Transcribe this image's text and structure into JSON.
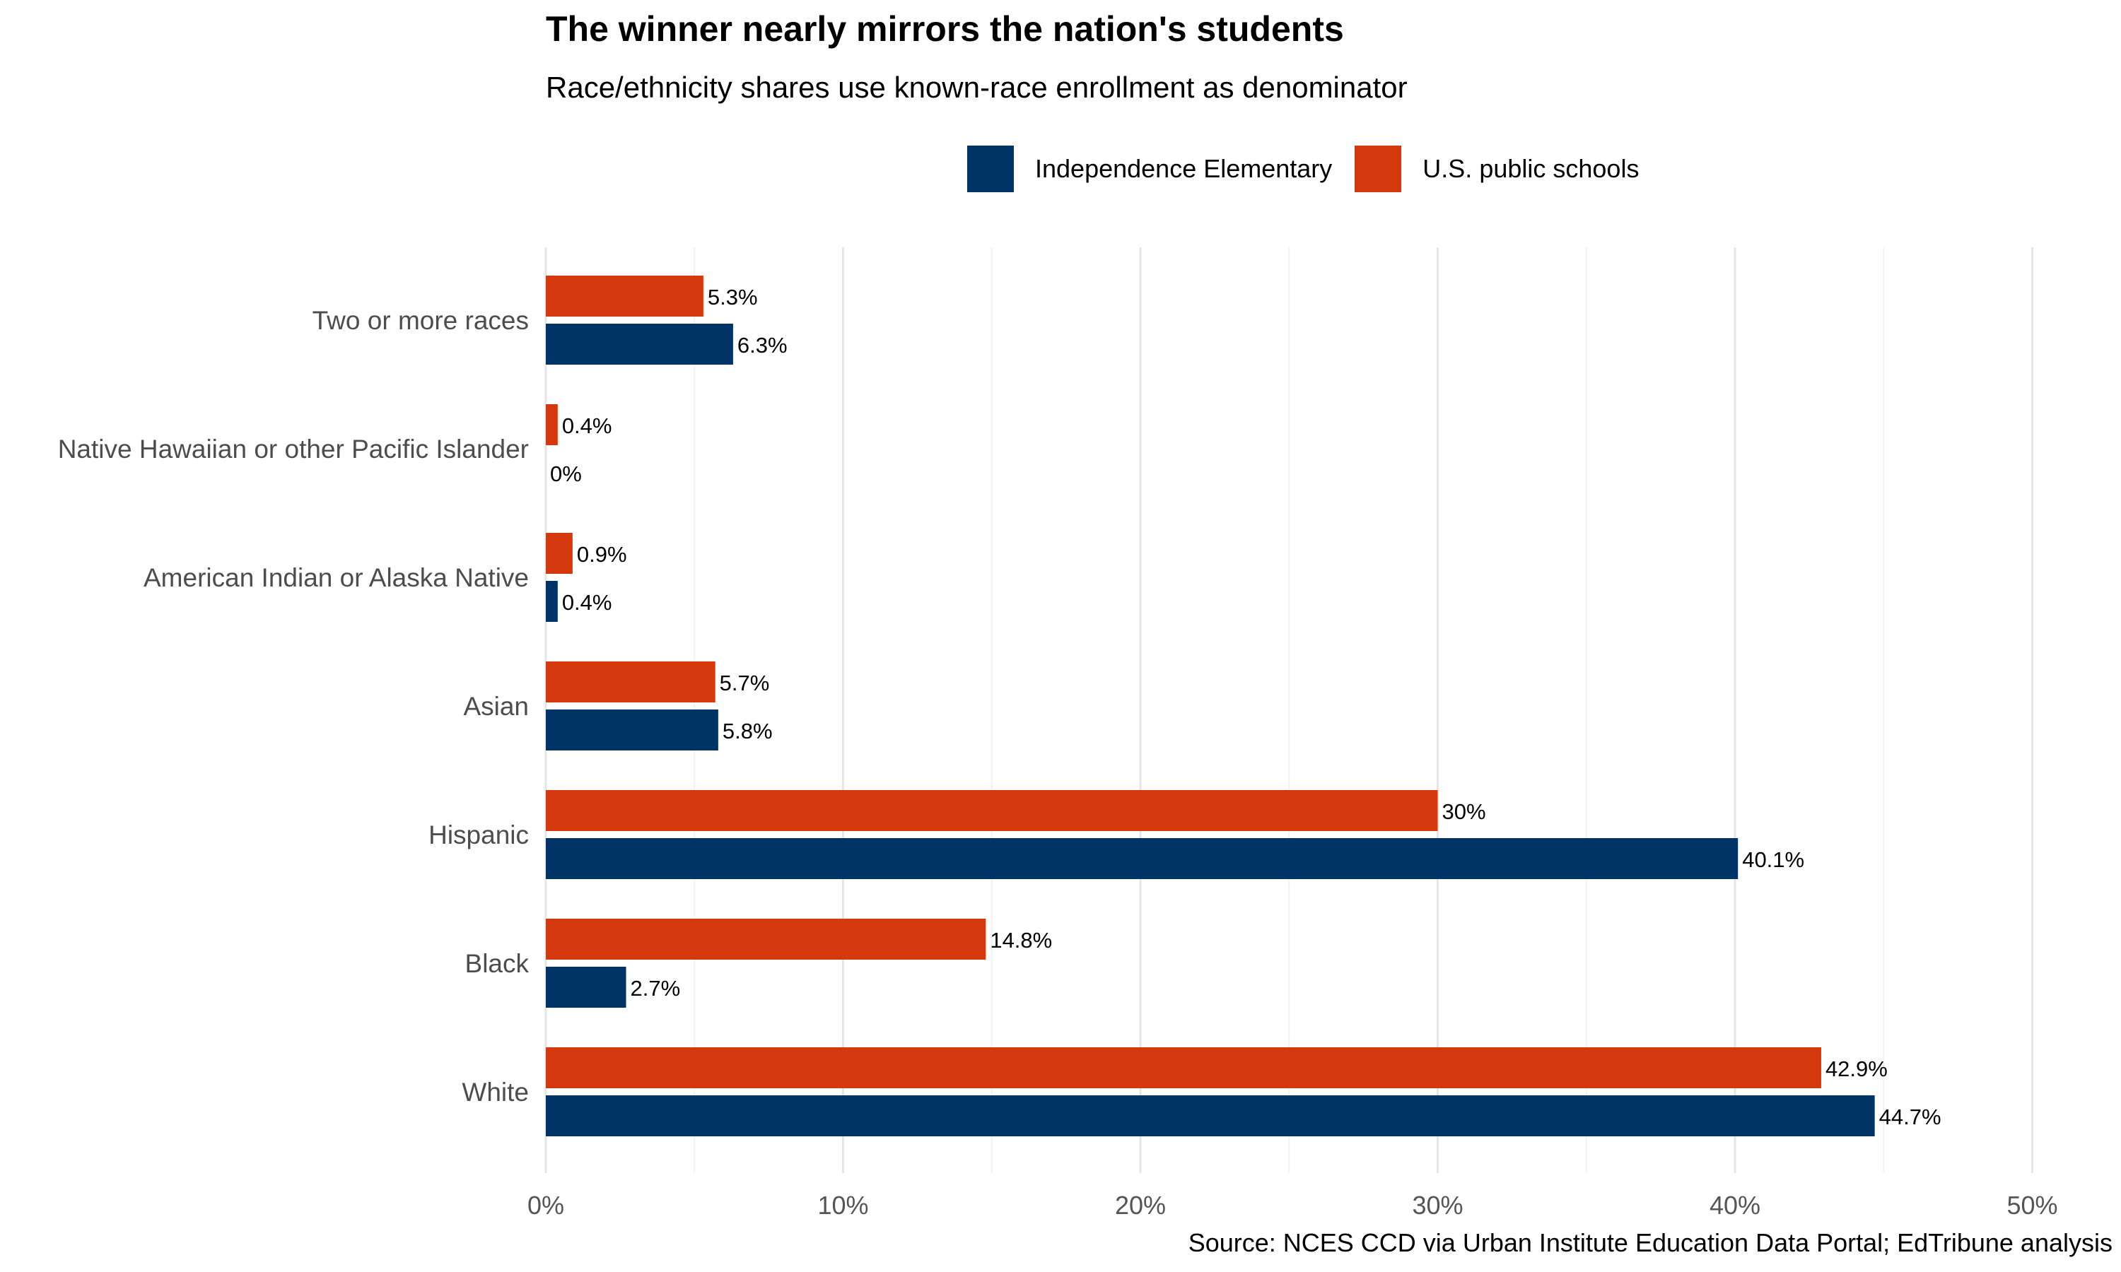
{
  "title": "The winner nearly mirrors the nation's students",
  "subtitle": "Race/ethnicity shares use known-race enrollment as denominator",
  "source": "Source: NCES CCD via Urban Institute Education Data Portal; EdTribune analysis",
  "legend": [
    {
      "name": "Independence Elementary",
      "color": "#003366"
    },
    {
      "name": "U.S. public schools",
      "color": "#D4380D"
    }
  ],
  "chart_data": {
    "type": "bar",
    "orientation": "horizontal",
    "title": "The winner nearly mirrors the nation's students",
    "subtitle": "Race/ethnicity shares use known-race enrollment as denominator",
    "xlabel": "",
    "ylabel": "",
    "xlim": [
      0,
      50
    ],
    "x_ticks": [
      "0%",
      "10%",
      "20%",
      "30%",
      "40%",
      "50%"
    ],
    "grid": true,
    "legend_position": "top",
    "categories": [
      "Two or more races",
      "Native Hawaiian or other Pacific Islander",
      "American Indian or Alaska Native",
      "Asian",
      "Hispanic",
      "Black",
      "White"
    ],
    "series": [
      {
        "name": "U.S. public schools",
        "color": "#D4380D",
        "values": [
          5.3,
          0.4,
          0.9,
          5.7,
          30,
          14.8,
          42.9
        ],
        "labels": [
          "5.3%",
          "0.4%",
          "0.9%",
          "5.7%",
          "30%",
          "14.8%",
          "42.9%"
        ]
      },
      {
        "name": "Independence Elementary",
        "color": "#003366",
        "values": [
          6.3,
          0,
          0.4,
          5.8,
          40.1,
          2.7,
          44.7
        ],
        "labels": [
          "6.3%",
          "0%",
          "0.4%",
          "5.8%",
          "40.1%",
          "2.7%",
          "44.7%"
        ]
      }
    ]
  }
}
